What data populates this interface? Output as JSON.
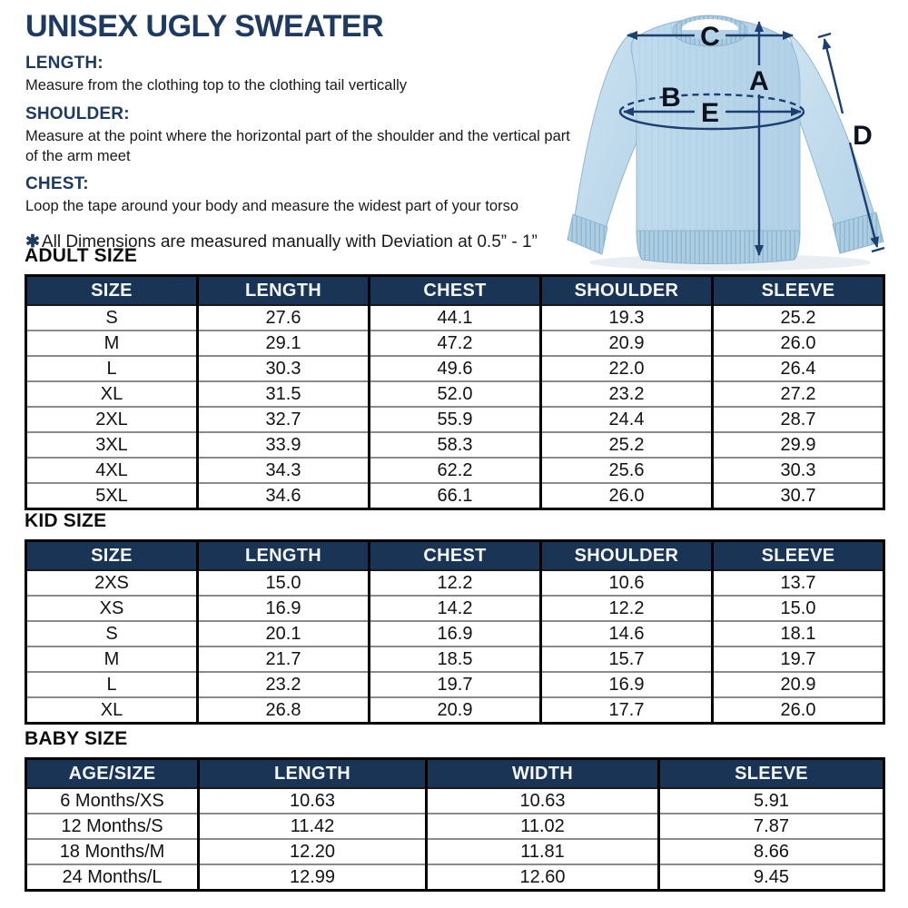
{
  "page": {
    "title": "UNISEX UGLY SWEATER",
    "instructions": [
      {
        "heading": "LENGTH:",
        "text": "Measure from the clothing top to the clothing tail vertically"
      },
      {
        "heading": "SHOULDER:",
        "text": "Measure at the point where the horizontal part of the shoulder and the vertical part of the arm meet"
      },
      {
        "heading": "CHEST:",
        "text": "Loop the tape around your body and measure the widest part of your torso"
      }
    ],
    "note_symbol": "✱",
    "note_text": "All Dimensions are measured manually with Deviation at 0.5” - 1”"
  },
  "diagram": {
    "labels": {
      "a": "A",
      "b": "B",
      "c": "C",
      "d": "D",
      "e": "E"
    }
  },
  "tables": [
    {
      "title": "ADULT SIZE",
      "headers": [
        "SIZE",
        "LENGTH",
        "CHEST",
        "SHOULDER",
        "SLEEVE"
      ],
      "rows": [
        [
          "S",
          "27.6",
          "44.1",
          "19.3",
          "25.2"
        ],
        [
          "M",
          "29.1",
          "47.2",
          "20.9",
          "26.0"
        ],
        [
          "L",
          "30.3",
          "49.6",
          "22.0",
          "26.4"
        ],
        [
          "XL",
          "31.5",
          "52.0",
          "23.2",
          "27.2"
        ],
        [
          "2XL",
          "32.7",
          "55.9",
          "24.4",
          "28.7"
        ],
        [
          "3XL",
          "33.9",
          "58.3",
          "25.2",
          "29.9"
        ],
        [
          "4XL",
          "34.3",
          "62.2",
          "25.6",
          "30.3"
        ],
        [
          "5XL",
          "34.6",
          "66.1",
          "26.0",
          "30.7"
        ]
      ]
    },
    {
      "title": "KID SIZE",
      "headers": [
        "SIZE",
        "LENGTH",
        "CHEST",
        "SHOULDER",
        "SLEEVE"
      ],
      "rows": [
        [
          "2XS",
          "15.0",
          "12.2",
          "10.6",
          "13.7"
        ],
        [
          "XS",
          "16.9",
          "14.2",
          "12.2",
          "15.0"
        ],
        [
          "S",
          "20.1",
          "16.9",
          "14.6",
          "18.1"
        ],
        [
          "M",
          "21.7",
          "18.5",
          "15.7",
          "19.7"
        ],
        [
          "L",
          "23.2",
          "19.7",
          "16.9",
          "20.9"
        ],
        [
          "XL",
          "26.8",
          "20.9",
          "17.7",
          "26.0"
        ]
      ]
    },
    {
      "title": "BABY SIZE",
      "headers": [
        "AGE/SIZE",
        "LENGTH",
        "WIDTH",
        "SLEEVE"
      ],
      "rows": [
        [
          "6 Months/XS",
          "10.63",
          "10.63",
          "5.91"
        ],
        [
          "12 Months/S",
          "11.42",
          "11.02",
          "7.87"
        ],
        [
          "18 Months/M",
          "12.20",
          "11.81",
          "8.66"
        ],
        [
          "24 Months/L",
          "12.99",
          "12.60",
          "9.45"
        ]
      ]
    }
  ],
  "colors": {
    "accent_navy": "#1a3456",
    "title_navy": "#1e3a60",
    "arrow_navy": "#1c3e70",
    "sweater_blue": "#b9d6ea",
    "header_text": "#f4f7fb",
    "row_divider": "#8a8a8a"
  }
}
